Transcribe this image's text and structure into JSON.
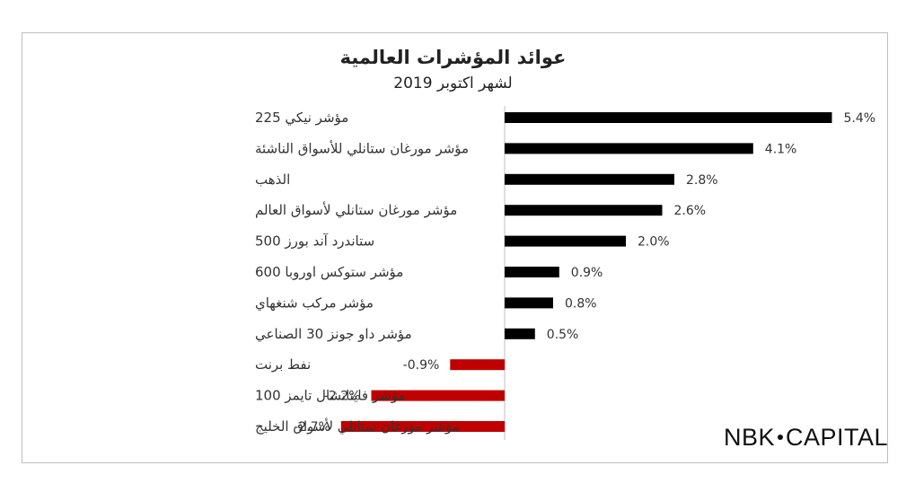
{
  "logo": {
    "left": "NBK",
    "right": "CAPITAL"
  },
  "chart_data": {
    "type": "bar",
    "orientation": "horizontal",
    "title": "عوائد المؤشرات العالمية",
    "subtitle": "لشهر اكتوبر 2019",
    "categories": [
      "مؤشر نيكي 225",
      "مؤشر مورغان ستانلي للأسواق الناشئة",
      "الذهب",
      "مؤشر مورغان ستانلي لأسواق العالم",
      "ستاندرد آند بورز 500",
      "مؤشر ستوكس اوروبا 600",
      "مؤشر مركب شنغهاي",
      "مؤشر داو جونز 30 الصناعي",
      "نفط برنت",
      "مؤشر فاينانشال تايمز 100",
      "مؤشر مورغان ستانلي لأسواق الخليج"
    ],
    "values": [
      5.4,
      4.1,
      2.8,
      2.6,
      2.0,
      0.9,
      0.8,
      0.5,
      -0.9,
      -2.2,
      -2.7
    ],
    "value_labels": [
      "5.4%",
      "4.1%",
      "2.8%",
      "2.6%",
      "2.0%",
      "0.9%",
      "0.8%",
      "0.5%",
      "-0.9%",
      "-2.2%",
      "-2.7%"
    ],
    "positive_color": "#000000",
    "negative_color": "#c00000",
    "xlim": [
      -3.3,
      5.8
    ],
    "grid": false,
    "legend": "none"
  }
}
